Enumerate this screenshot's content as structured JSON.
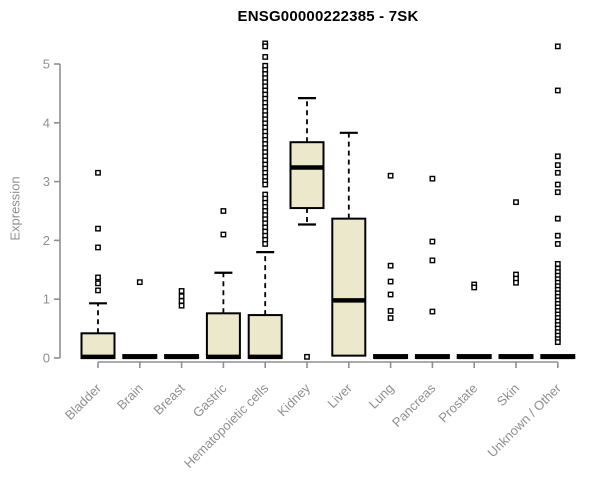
{
  "chart_data": {
    "type": "boxplot",
    "title": "ENSG00000222385 - 7SK",
    "ylabel": "Expression",
    "ylim": [
      0,
      5.4
    ],
    "yticks": [
      0,
      1,
      2,
      3,
      4,
      5
    ],
    "grid": false,
    "legend": "none",
    "box_fill": "#ECE8CC",
    "box_stroke": "#000000",
    "axis_color": "#8f8f8f",
    "categories": [
      "Bladder",
      "Brain",
      "Breast",
      "Gastric",
      "Hematopoietic cells",
      "Kidney",
      "Liver",
      "Lung",
      "Pancreas",
      "Prostate",
      "Skin",
      "Unknown / Other"
    ],
    "series": [
      {
        "name": "Bladder",
        "q1": 0,
        "median": 0.02,
        "q3": 0.42,
        "whisker_low": 0,
        "whisker_high": 0.93,
        "outliers": [
          3.15,
          2.2,
          1.88,
          1.37,
          1.27,
          1.15
        ]
      },
      {
        "name": "Brain",
        "q1": 0,
        "median": 0.02,
        "q3": 0.05,
        "whisker_low": 0,
        "whisker_high": 0.05,
        "outliers": [
          1.29
        ]
      },
      {
        "name": "Breast",
        "q1": 0,
        "median": 0.02,
        "q3": 0.05,
        "whisker_low": 0,
        "whisker_high": 0.05,
        "outliers": [
          1.14,
          1.05,
          0.97,
          0.89
        ]
      },
      {
        "name": "Gastric",
        "q1": 0,
        "median": 0.02,
        "q3": 0.76,
        "whisker_low": 0,
        "whisker_high": 1.45,
        "outliers": [
          2.5,
          2.1
        ]
      },
      {
        "name": "Hematopoietic cells",
        "q1": 0,
        "median": 0.02,
        "q3": 0.73,
        "whisker_low": 0,
        "whisker_high": 1.8,
        "outliers": [
          5.35,
          5.3,
          5.12,
          4.97,
          4.9,
          4.83,
          4.76,
          4.69,
          4.62,
          4.55,
          4.48,
          4.41,
          4.34,
          4.27,
          4.2,
          4.13,
          4.06,
          3.99,
          3.92,
          3.85,
          3.78,
          3.71,
          3.64,
          3.57,
          3.5,
          3.43,
          3.36,
          3.29,
          3.22,
          3.15,
          3.08,
          3.01,
          2.95,
          2.78,
          2.71,
          2.64,
          2.57,
          2.5,
          2.43,
          2.36,
          2.29,
          2.22,
          2.15,
          2.08,
          2.01,
          1.94
        ]
      },
      {
        "name": "Kidney",
        "q1": 2.55,
        "median": 3.24,
        "q3": 3.67,
        "whisker_low": 2.27,
        "whisker_high": 4.42,
        "outliers": [
          0.02
        ]
      },
      {
        "name": "Liver",
        "q1": 0.04,
        "median": 0.98,
        "q3": 2.37,
        "whisker_low": 0.04,
        "whisker_high": 3.83,
        "outliers": []
      },
      {
        "name": "Lung",
        "q1": 0,
        "median": 0.02,
        "q3": 0.05,
        "whisker_low": 0,
        "whisker_high": 0.05,
        "outliers": [
          3.1,
          1.57,
          1.3,
          1.08,
          0.8,
          0.68
        ]
      },
      {
        "name": "Pancreas",
        "q1": 0,
        "median": 0.02,
        "q3": 0.05,
        "whisker_low": 0,
        "whisker_high": 0.05,
        "outliers": [
          3.05,
          1.98,
          1.66,
          0.79
        ]
      },
      {
        "name": "Prostate",
        "q1": 0,
        "median": 0.02,
        "q3": 0.05,
        "whisker_low": 0,
        "whisker_high": 0.05,
        "outliers": [
          1.25,
          1.2
        ]
      },
      {
        "name": "Skin",
        "q1": 0,
        "median": 0.02,
        "q3": 0.05,
        "whisker_low": 0,
        "whisker_high": 0.05,
        "outliers": [
          2.65,
          1.42,
          1.35,
          1.28
        ]
      },
      {
        "name": "Unknown / Other",
        "q1": 0,
        "median": 0.02,
        "q3": 0.05,
        "whisker_low": 0,
        "whisker_high": 0.05,
        "outliers": [
          5.3,
          4.55,
          3.43,
          3.28,
          3.15,
          2.95,
          2.82,
          2.37,
          2.08,
          1.94,
          1.6,
          1.52,
          1.46,
          1.4,
          1.34,
          1.28,
          1.22,
          1.16,
          1.1,
          1.04,
          0.98,
          0.92,
          0.86,
          0.8,
          0.74,
          0.68,
          0.62,
          0.56,
          0.5,
          0.44,
          0.38,
          0.32,
          0.27
        ]
      }
    ]
  }
}
